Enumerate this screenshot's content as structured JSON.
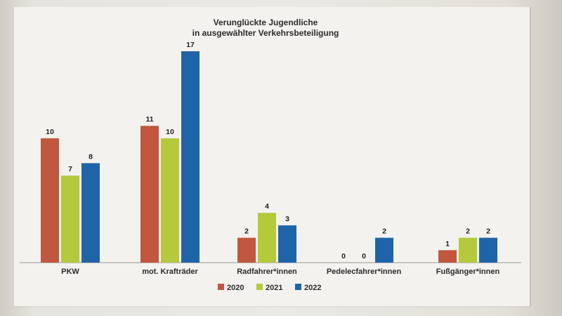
{
  "chart_data": {
    "type": "bar",
    "title": "Verunglückte Jugendliche",
    "subtitle": "in ausgewählter Verkehrsbeteiligung",
    "categories": [
      "PKW",
      "mot. Krafträder",
      "Radfahrer*innen",
      "Pedelecfahrer*innen",
      "Fußgänger*innen"
    ],
    "series": [
      {
        "name": "2020",
        "color": "#c0573e",
        "values": [
          10,
          11,
          2,
          0,
          1
        ]
      },
      {
        "name": "2021",
        "color": "#b4c93c",
        "values": [
          7,
          10,
          4,
          0,
          2
        ]
      },
      {
        "name": "2022",
        "color": "#1f64a8",
        "values": [
          8,
          17,
          3,
          2,
          2
        ]
      }
    ],
    "ylim": [
      0,
      17
    ],
    "grid": false,
    "legend_position": "bottom"
  }
}
